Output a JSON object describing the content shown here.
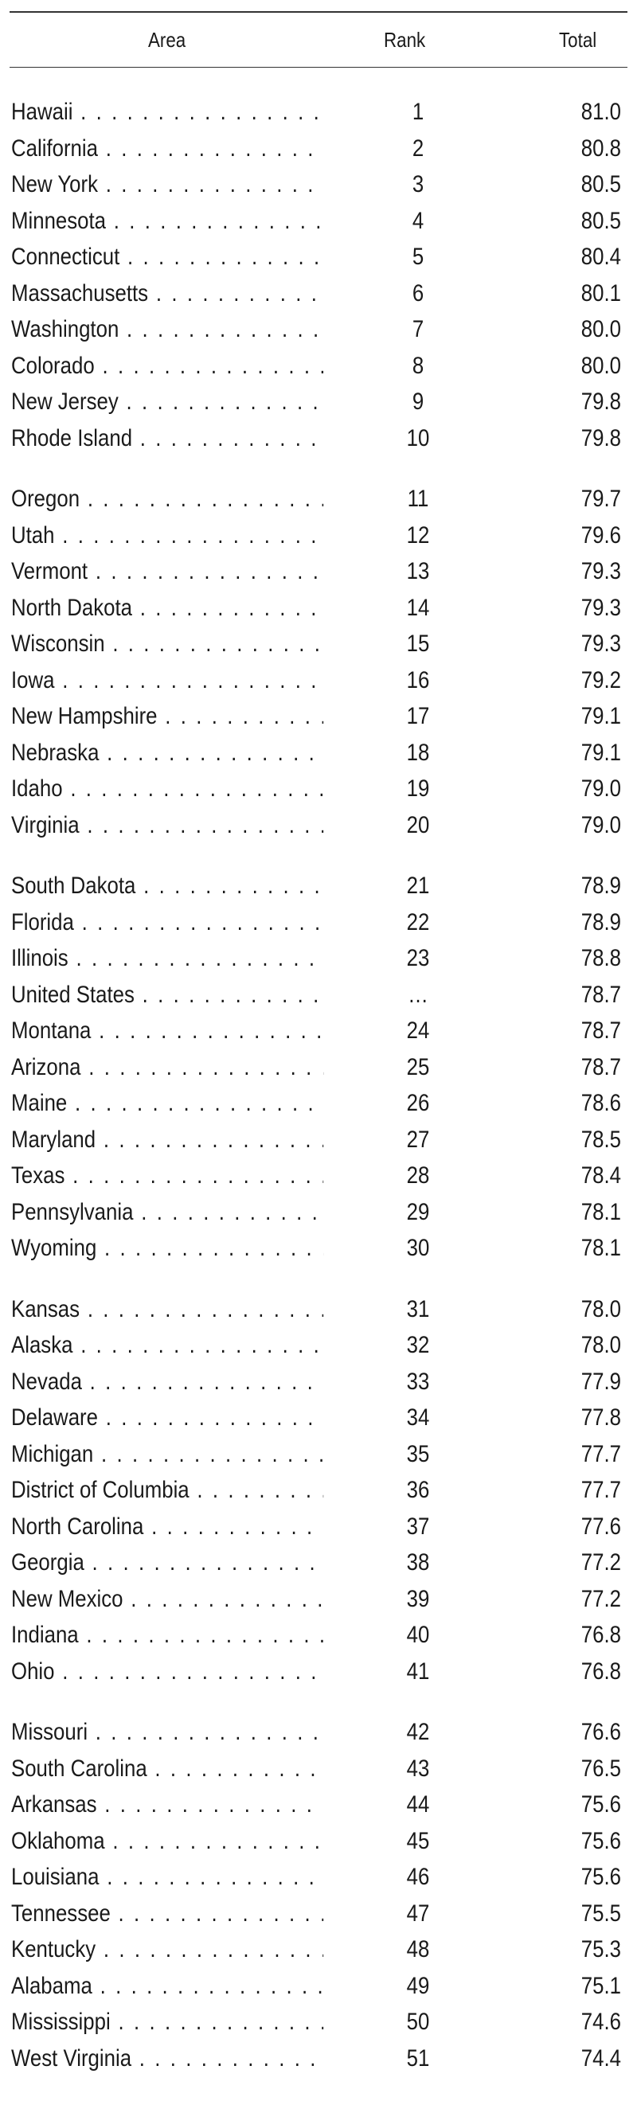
{
  "table": {
    "headers": {
      "area": "Area",
      "rank": "Rank",
      "total": "Total"
    },
    "groups": [
      [
        {
          "area": "Hawaii",
          "rank": "1",
          "total": "81.0"
        },
        {
          "area": "California",
          "rank": "2",
          "total": "80.8"
        },
        {
          "area": "New York",
          "rank": "3",
          "total": "80.5"
        },
        {
          "area": "Minnesota",
          "rank": "4",
          "total": "80.5"
        },
        {
          "area": "Connecticut",
          "rank": "5",
          "total": "80.4"
        },
        {
          "area": "Massachusetts",
          "rank": "6",
          "total": "80.1"
        },
        {
          "area": "Washington",
          "rank": "7",
          "total": "80.0"
        },
        {
          "area": "Colorado",
          "rank": "8",
          "total": "80.0"
        },
        {
          "area": "New Jersey",
          "rank": "9",
          "total": "79.8"
        },
        {
          "area": "Rhode Island",
          "rank": "10",
          "total": "79.8"
        }
      ],
      [
        {
          "area": "Oregon",
          "rank": "11",
          "total": "79.7"
        },
        {
          "area": "Utah",
          "rank": "12",
          "total": "79.6"
        },
        {
          "area": "Vermont",
          "rank": "13",
          "total": "79.3"
        },
        {
          "area": "North Dakota",
          "rank": "14",
          "total": "79.3"
        },
        {
          "area": "Wisconsin",
          "rank": "15",
          "total": "79.3"
        },
        {
          "area": "Iowa",
          "rank": "16",
          "total": "79.2"
        },
        {
          "area": "New Hampshire",
          "rank": "17",
          "total": "79.1"
        },
        {
          "area": "Nebraska",
          "rank": "18",
          "total": "79.1"
        },
        {
          "area": "Idaho",
          "rank": "19",
          "total": "79.0"
        },
        {
          "area": "Virginia",
          "rank": "20",
          "total": "79.0"
        }
      ],
      [
        {
          "area": "South Dakota",
          "rank": "21",
          "total": "78.9"
        },
        {
          "area": "Florida",
          "rank": "22",
          "total": "78.9"
        },
        {
          "area": "Illinois",
          "rank": "23",
          "total": "78.8"
        },
        {
          "area": "United States",
          "rank": "…",
          "total": "78.7"
        },
        {
          "area": "Montana",
          "rank": "24",
          "total": "78.7"
        },
        {
          "area": "Arizona",
          "rank": "25",
          "total": "78.7"
        },
        {
          "area": "Maine",
          "rank": "26",
          "total": "78.6"
        },
        {
          "area": "Maryland",
          "rank": "27",
          "total": "78.5"
        },
        {
          "area": "Texas",
          "rank": "28",
          "total": "78.4"
        },
        {
          "area": "Pennsylvania",
          "rank": "29",
          "total": "78.1"
        },
        {
          "area": "Wyoming",
          "rank": "30",
          "total": "78.1"
        }
      ],
      [
        {
          "area": "Kansas",
          "rank": "31",
          "total": "78.0"
        },
        {
          "area": "Alaska",
          "rank": "32",
          "total": "78.0"
        },
        {
          "area": "Nevada",
          "rank": "33",
          "total": "77.9"
        },
        {
          "area": "Delaware",
          "rank": "34",
          "total": "77.8"
        },
        {
          "area": "Michigan",
          "rank": "35",
          "total": "77.7"
        },
        {
          "area": "District of Columbia",
          "rank": "36",
          "total": "77.7"
        },
        {
          "area": "North Carolina",
          "rank": "37",
          "total": "77.6"
        },
        {
          "area": "Georgia",
          "rank": "38",
          "total": "77.2"
        },
        {
          "area": "New Mexico",
          "rank": "39",
          "total": "77.2"
        },
        {
          "area": "Indiana",
          "rank": "40",
          "total": "76.8"
        },
        {
          "area": "Ohio",
          "rank": "41",
          "total": "76.8"
        }
      ],
      [
        {
          "area": "Missouri",
          "rank": "42",
          "total": "76.6"
        },
        {
          "area": "South Carolina",
          "rank": "43",
          "total": "76.5"
        },
        {
          "area": "Arkansas",
          "rank": "44",
          "total": "75.6"
        },
        {
          "area": "Oklahoma",
          "rank": "45",
          "total": "75.6"
        },
        {
          "area": "Louisiana",
          "rank": "46",
          "total": "75.6"
        },
        {
          "area": "Tennessee",
          "rank": "47",
          "total": "75.5"
        },
        {
          "area": "Kentucky",
          "rank": "48",
          "total": "75.3"
        },
        {
          "area": "Alabama",
          "rank": "49",
          "total": "75.1"
        },
        {
          "area": "Mississippi",
          "rank": "50",
          "total": "74.6"
        },
        {
          "area": "West Virginia",
          "rank": "51",
          "total": "74.4"
        }
      ]
    ]
  }
}
